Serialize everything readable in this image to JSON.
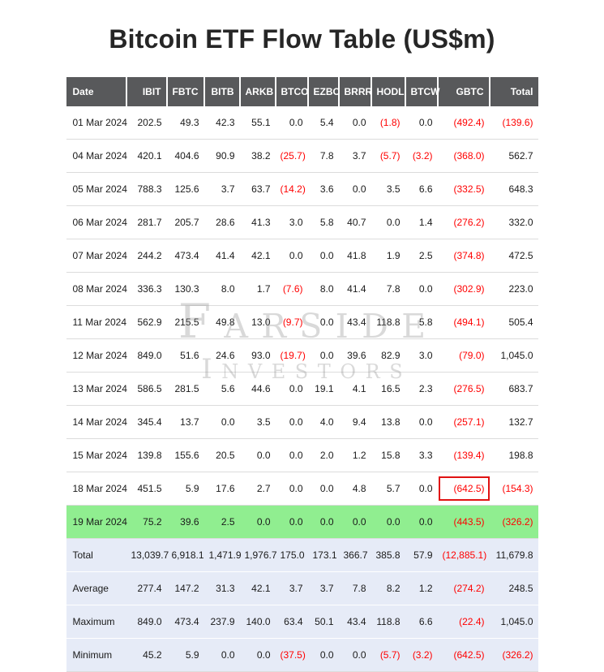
{
  "title": "Bitcoin ETF Flow Table (US$m)",
  "watermark": {
    "line1": "Farside",
    "line2": "Investors"
  },
  "chart_data": {
    "type": "table",
    "title": "Bitcoin ETF Flow Table (US$m)",
    "columns": [
      "Date",
      "IBIT",
      "FBTC",
      "BITB",
      "ARKB",
      "BTCO",
      "EZBC",
      "BRRR",
      "HODL",
      "BTCW",
      "GBTC",
      "Total"
    ],
    "rows": [
      [
        "01 Mar 2024",
        "202.5",
        "49.3",
        "42.3",
        "55.1",
        "0.0",
        "5.4",
        "0.0",
        "(1.8)",
        "0.0",
        "(492.4)",
        "(139.6)"
      ],
      [
        "04 Mar 2024",
        "420.1",
        "404.6",
        "90.9",
        "38.2",
        "(25.7)",
        "7.8",
        "3.7",
        "(5.7)",
        "(3.2)",
        "(368.0)",
        "562.7"
      ],
      [
        "05 Mar 2024",
        "788.3",
        "125.6",
        "3.7",
        "63.7",
        "(14.2)",
        "3.6",
        "0.0",
        "3.5",
        "6.6",
        "(332.5)",
        "648.3"
      ],
      [
        "06 Mar 2024",
        "281.7",
        "205.7",
        "28.6",
        "41.3",
        "3.0",
        "5.8",
        "40.7",
        "0.0",
        "1.4",
        "(276.2)",
        "332.0"
      ],
      [
        "07 Mar 2024",
        "244.2",
        "473.4",
        "41.4",
        "42.1",
        "0.0",
        "0.0",
        "41.8",
        "1.9",
        "2.5",
        "(374.8)",
        "472.5"
      ],
      [
        "08 Mar 2024",
        "336.3",
        "130.3",
        "8.0",
        "1.7",
        "(7.6)",
        "8.0",
        "41.4",
        "7.8",
        "0.0",
        "(302.9)",
        "223.0"
      ],
      [
        "11 Mar 2024",
        "562.9",
        "215.5",
        "49.8",
        "13.0",
        "(9.7)",
        "0.0",
        "43.4",
        "118.8",
        "5.8",
        "(494.1)",
        "505.4"
      ],
      [
        "12 Mar 2024",
        "849.0",
        "51.6",
        "24.6",
        "93.0",
        "(19.7)",
        "0.0",
        "39.6",
        "82.9",
        "3.0",
        "(79.0)",
        "1,045.0"
      ],
      [
        "13 Mar 2024",
        "586.5",
        "281.5",
        "5.6",
        "44.6",
        "0.0",
        "19.1",
        "4.1",
        "16.5",
        "2.3",
        "(276.5)",
        "683.7"
      ],
      [
        "14 Mar 2024",
        "345.4",
        "13.7",
        "0.0",
        "3.5",
        "0.0",
        "4.0",
        "9.4",
        "13.8",
        "0.0",
        "(257.1)",
        "132.7"
      ],
      [
        "15 Mar 2024",
        "139.8",
        "155.6",
        "20.5",
        "0.0",
        "0.0",
        "2.0",
        "1.2",
        "15.8",
        "3.3",
        "(139.4)",
        "198.8"
      ],
      [
        "18 Mar 2024",
        "451.5",
        "5.9",
        "17.6",
        "2.7",
        "0.0",
        "0.0",
        "4.8",
        "5.7",
        "0.0",
        "(642.5)",
        "(154.3)"
      ],
      [
        "19 Mar 2024",
        "75.2",
        "39.6",
        "2.5",
        "0.0",
        "0.0",
        "0.0",
        "0.0",
        "0.0",
        "0.0",
        "(443.5)",
        "(326.2)"
      ]
    ],
    "summary_rows": [
      [
        "Total",
        "13,039.7",
        "6,918.1",
        "1,471.9",
        "1,976.7",
        "175.0",
        "173.1",
        "366.7",
        "385.8",
        "57.9",
        "(12,885.1)",
        "11,679.8"
      ],
      [
        "Average",
        "277.4",
        "147.2",
        "31.3",
        "42.1",
        "3.7",
        "3.7",
        "7.8",
        "8.2",
        "1.2",
        "(274.2)",
        "248.5"
      ],
      [
        "Maximum",
        "849.0",
        "473.4",
        "237.9",
        "140.0",
        "63.4",
        "50.1",
        "43.4",
        "118.8",
        "6.6",
        "(22.4)",
        "1,045.0"
      ],
      [
        "Minimum",
        "45.2",
        "5.9",
        "0.0",
        "0.0",
        "(37.5)",
        "0.0",
        "0.0",
        "(5.7)",
        "(3.2)",
        "(642.5)",
        "(326.2)"
      ]
    ],
    "highlight": {
      "green_row_date": "19 Mar 2024",
      "boxed_cell": {
        "row_date": "18 Mar 2024",
        "column": "GBTC",
        "value": "(642.5)"
      }
    },
    "notes": "Negative values shown in parentheses and red"
  },
  "colors": {
    "header_bg": "#58595b",
    "header_text": "#ffffff",
    "text": "#1a1a1a",
    "negative": "#ff0000",
    "summary_bg": "#e6ebf7",
    "highlight_green": "#90ee90",
    "box_red": "#e01212",
    "row_border": "#dcdcdc",
    "watermark": "#8a8a8a"
  }
}
